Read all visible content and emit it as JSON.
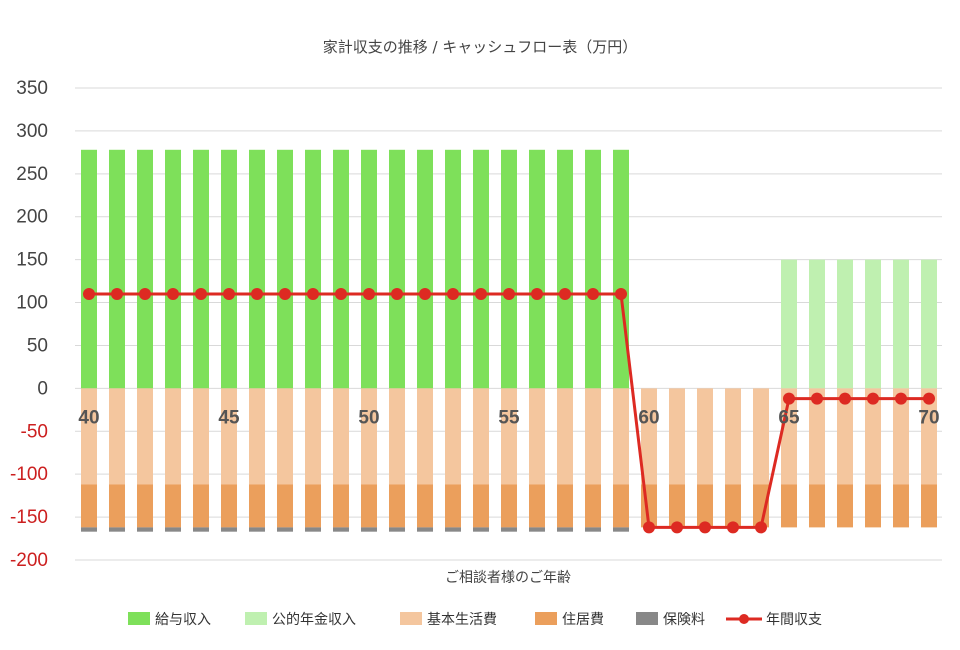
{
  "chart_data": {
    "type": "bar",
    "title": "家計収支の推移 / キャッシュフロー表（万円）",
    "xlabel": "ご相談者様のご年齢",
    "ylabel": "",
    "ylim": [
      -200,
      350
    ],
    "yticks": [
      "350",
      "300",
      "250",
      "200",
      "150",
      "100",
      "50",
      "0",
      "-50",
      "-100",
      "-150",
      "-200"
    ],
    "xticks": [
      "40",
      "45",
      "50",
      "55",
      "60",
      "65",
      "70"
    ],
    "x": [
      40,
      41,
      42,
      43,
      44,
      45,
      46,
      47,
      48,
      49,
      50,
      51,
      52,
      53,
      54,
      55,
      56,
      57,
      58,
      59,
      60,
      61,
      62,
      63,
      64,
      65,
      66,
      67,
      68,
      69,
      70
    ],
    "series": [
      {
        "name": "給与収入",
        "kind": "bar",
        "color": "#7ee05a",
        "values": [
          278,
          278,
          278,
          278,
          278,
          278,
          278,
          278,
          278,
          278,
          278,
          278,
          278,
          278,
          278,
          278,
          278,
          278,
          278,
          278,
          0,
          0,
          0,
          0,
          0,
          0,
          0,
          0,
          0,
          0,
          0
        ]
      },
      {
        "name": "公的年金収入",
        "kind": "bar",
        "color": "#bff0b0",
        "values": [
          0,
          0,
          0,
          0,
          0,
          0,
          0,
          0,
          0,
          0,
          0,
          0,
          0,
          0,
          0,
          0,
          0,
          0,
          0,
          0,
          0,
          0,
          0,
          0,
          0,
          150,
          150,
          150,
          150,
          150,
          150
        ]
      },
      {
        "name": "基本生活費",
        "kind": "bar",
        "color": "#f4c69e",
        "values": [
          -112,
          -112,
          -112,
          -112,
          -112,
          -112,
          -112,
          -112,
          -112,
          -112,
          -112,
          -112,
          -112,
          -112,
          -112,
          -112,
          -112,
          -112,
          -112,
          -112,
          -112,
          -112,
          -112,
          -112,
          -112,
          -112,
          -112,
          -112,
          -112,
          -112,
          -112
        ]
      },
      {
        "name": "住居費",
        "kind": "bar",
        "color": "#eb9f5c",
        "values": [
          -50,
          -50,
          -50,
          -50,
          -50,
          -50,
          -50,
          -50,
          -50,
          -50,
          -50,
          -50,
          -50,
          -50,
          -50,
          -50,
          -50,
          -50,
          -50,
          -50,
          -50,
          -50,
          -50,
          -50,
          -50,
          -50,
          -50,
          -50,
          -50,
          -50,
          -50
        ]
      },
      {
        "name": "保険料",
        "kind": "bar",
        "color": "#888888",
        "values": [
          -5,
          -5,
          -5,
          -5,
          -5,
          -5,
          -5,
          -5,
          -5,
          -5,
          -5,
          -5,
          -5,
          -5,
          -5,
          -5,
          -5,
          -5,
          -5,
          -5,
          0,
          0,
          0,
          0,
          0,
          0,
          0,
          0,
          0,
          0,
          0
        ]
      },
      {
        "name": "年間収支",
        "kind": "line",
        "color": "#dd2a22",
        "values": [
          110,
          110,
          110,
          110,
          110,
          110,
          110,
          110,
          110,
          110,
          110,
          110,
          110,
          110,
          110,
          110,
          110,
          110,
          110,
          110,
          -162,
          -162,
          -162,
          -162,
          -162,
          -12,
          -12,
          -12,
          -12,
          -12,
          -12
        ]
      }
    ],
    "legend": "bottom"
  }
}
